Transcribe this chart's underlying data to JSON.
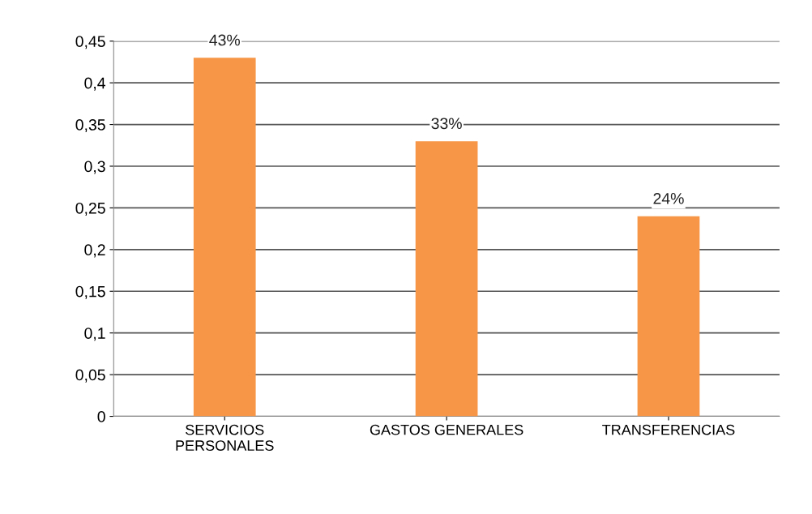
{
  "chart_data": {
    "type": "bar",
    "categories": [
      "SERVICIOS\nPERSONALES",
      "GASTOS GENERALES",
      "TRANSFERENCIAS"
    ],
    "values": [
      0.43,
      0.33,
      0.24
    ],
    "value_labels": [
      "43%",
      "33%",
      "24%"
    ],
    "color": "#f79646",
    "ylim": [
      0,
      0.45
    ],
    "yticks": [
      0,
      {
        "value": 0.05,
        "label": "0,05"
      },
      {
        "value": 0.1,
        "label": "0,1"
      },
      {
        "value": 0.15,
        "label": "0,15"
      },
      {
        "value": 0.2,
        "label": "0,2"
      },
      {
        "value": 0.25,
        "label": "0,25"
      },
      {
        "value": 0.3,
        "label": "0,3"
      },
      {
        "value": 0.35,
        "label": "0,35"
      },
      {
        "value": 0.4,
        "label": "0,4"
      },
      {
        "value": 0.45,
        "label": "0,45"
      }
    ],
    "grid": "y"
  }
}
